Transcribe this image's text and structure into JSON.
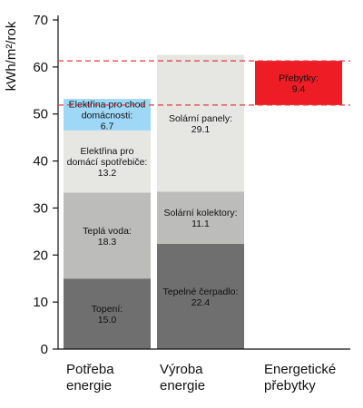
{
  "chart_data": {
    "type": "bar",
    "stacked": true,
    "ylabel": "kWh/m²/rok",
    "ylim": [
      0,
      70
    ],
    "yticks": [
      0,
      10,
      20,
      30,
      40,
      50,
      60,
      70
    ],
    "grid": false,
    "reference_line": 61.3,
    "reference_line_style": "dashed",
    "reference_line_color": "#e03a3a",
    "bars": [
      {
        "category": [
          "Potřeba",
          "energie"
        ],
        "segments": [
          {
            "label": [
              "Topení:",
              "15.0"
            ],
            "value": 15.0,
            "color": "#6f6f6f"
          },
          {
            "label": [
              "Teplá voda:",
              "18.3"
            ],
            "value": 18.3,
            "color": "#bcbcbb"
          },
          {
            "label": [
              "Elektřina pro",
              "domácí spotřebiče:",
              "13.2"
            ],
            "value": 13.2,
            "color": "#e6e6e3"
          },
          {
            "label": [
              "Elektřina pro chod",
              "domácnosti:",
              "6.7"
            ],
            "value": 6.7,
            "color": "#9ed8f6"
          }
        ]
      },
      {
        "category": [
          "Výroba",
          "energie"
        ],
        "segments": [
          {
            "label": [
              "Tepelné čerpadlo:",
              "22.4"
            ],
            "value": 22.4,
            "color": "#6f6f6f"
          },
          {
            "label": [
              "Solární kolektory:",
              "11.1"
            ],
            "value": 11.1,
            "color": "#bcbcbb"
          },
          {
            "label": [
              "Solární panely:",
              "29.1"
            ],
            "value": 29.1,
            "color": "#e6e6e3"
          }
        ]
      },
      {
        "category": [
          "Energetické",
          "přebytky"
        ],
        "base": 51.9,
        "segments": [
          {
            "label": [
              "Přebytky:",
              "9.4"
            ],
            "value": 9.4,
            "color": "#ee1c25"
          }
        ]
      }
    ]
  }
}
